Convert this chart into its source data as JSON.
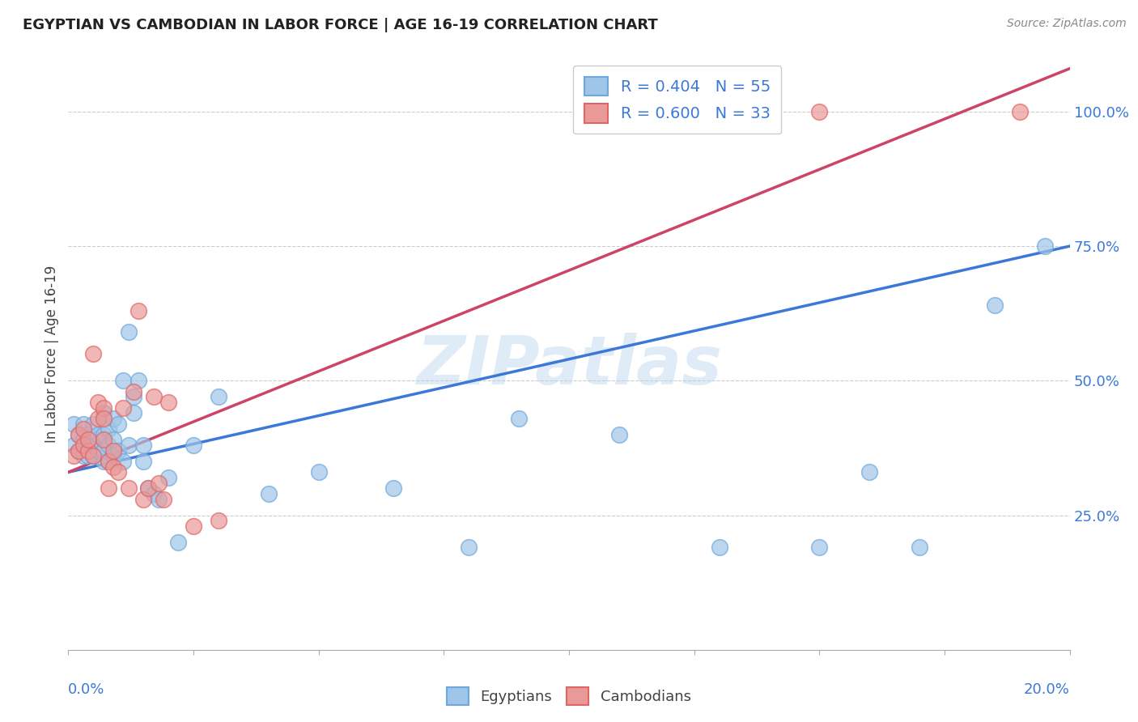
{
  "title": "EGYPTIAN VS CAMBODIAN IN LABOR FORCE | AGE 16-19 CORRELATION CHART",
  "source": "Source: ZipAtlas.com",
  "ylabel": "In Labor Force | Age 16-19",
  "ytick_labels": [
    "25.0%",
    "50.0%",
    "75.0%",
    "100.0%"
  ],
  "ytick_positions": [
    0.25,
    0.5,
    0.75,
    1.0
  ],
  "blue_legend": "R = 0.404   N = 55",
  "pink_legend": "R = 0.600   N = 33",
  "blue_color": "#9fc5e8",
  "pink_color": "#ea9999",
  "blue_edge_color": "#6fa8dc",
  "pink_edge_color": "#e06666",
  "blue_line_color": "#3c78d8",
  "pink_line_color": "#cc4466",
  "watermark": "ZIPatlas",
  "egyptians_label": "Egyptians",
  "cambodians_label": "Cambodians",
  "xlim": [
    0.0,
    0.2
  ],
  "ylim": [
    0.0,
    1.1
  ],
  "blue_scatter_x": [
    0.001,
    0.001,
    0.002,
    0.002,
    0.003,
    0.003,
    0.003,
    0.004,
    0.004,
    0.004,
    0.005,
    0.005,
    0.005,
    0.006,
    0.006,
    0.007,
    0.007,
    0.007,
    0.007,
    0.008,
    0.008,
    0.008,
    0.009,
    0.009,
    0.009,
    0.01,
    0.01,
    0.011,
    0.011,
    0.012,
    0.012,
    0.013,
    0.013,
    0.014,
    0.015,
    0.015,
    0.016,
    0.017,
    0.018,
    0.02,
    0.022,
    0.025,
    0.03,
    0.04,
    0.05,
    0.065,
    0.08,
    0.09,
    0.11,
    0.13,
    0.15,
    0.16,
    0.17,
    0.185,
    0.195
  ],
  "blue_scatter_y": [
    0.38,
    0.42,
    0.37,
    0.4,
    0.36,
    0.39,
    0.42,
    0.36,
    0.38,
    0.4,
    0.36,
    0.38,
    0.42,
    0.37,
    0.4,
    0.35,
    0.37,
    0.4,
    0.44,
    0.35,
    0.38,
    0.41,
    0.36,
    0.39,
    0.43,
    0.37,
    0.42,
    0.35,
    0.5,
    0.38,
    0.59,
    0.44,
    0.47,
    0.5,
    0.35,
    0.38,
    0.3,
    0.29,
    0.28,
    0.32,
    0.2,
    0.38,
    0.47,
    0.29,
    0.33,
    0.3,
    0.19,
    0.43,
    0.4,
    0.19,
    0.19,
    0.33,
    0.19,
    0.64,
    0.75
  ],
  "pink_scatter_x": [
    0.001,
    0.002,
    0.002,
    0.003,
    0.003,
    0.004,
    0.004,
    0.005,
    0.005,
    0.006,
    0.006,
    0.007,
    0.007,
    0.007,
    0.008,
    0.008,
    0.009,
    0.009,
    0.01,
    0.011,
    0.012,
    0.013,
    0.014,
    0.015,
    0.016,
    0.017,
    0.018,
    0.019,
    0.02,
    0.025,
    0.03,
    0.15,
    0.19
  ],
  "pink_scatter_y": [
    0.36,
    0.37,
    0.4,
    0.38,
    0.41,
    0.37,
    0.39,
    0.55,
    0.36,
    0.43,
    0.46,
    0.45,
    0.39,
    0.43,
    0.35,
    0.3,
    0.34,
    0.37,
    0.33,
    0.45,
    0.3,
    0.48,
    0.63,
    0.28,
    0.3,
    0.47,
    0.31,
    0.28,
    0.46,
    0.23,
    0.24,
    1.0,
    1.0
  ],
  "blue_line_x": [
    0.0,
    0.2
  ],
  "blue_line_y": [
    0.33,
    0.75
  ],
  "pink_line_x": [
    0.0,
    0.2
  ],
  "pink_line_y": [
    0.33,
    1.08
  ]
}
